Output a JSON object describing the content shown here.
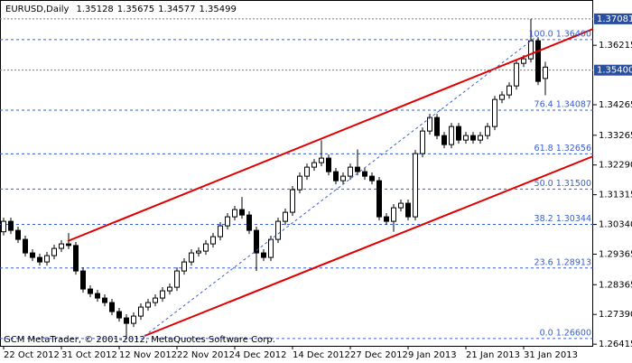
{
  "chart_data": {
    "type": "candlestick",
    "title": "EURUSD,Daily",
    "caption": "GCM MetaTrader, © 2001-2012, MetaQuotes Software Corp.",
    "up_color": "#ffffff",
    "down_color": "#000000",
    "fib_color": "#3a5fcd",
    "categories": [
      "22 Oct 2012",
      null,
      null,
      null,
      null,
      null,
      null,
      null,
      "31 Oct 2012",
      null,
      null,
      null,
      null,
      null,
      null,
      null,
      "12 Nov 2012",
      null,
      null,
      null,
      null,
      null,
      null,
      null,
      "22 Nov 2012",
      null,
      null,
      null,
      null,
      null,
      null,
      null,
      "4 Dec 2012",
      null,
      null,
      null,
      null,
      null,
      null,
      null,
      "14 Dec 2012",
      null,
      null,
      null,
      null,
      null,
      null,
      null,
      "27 Dec 2012",
      null,
      null,
      null,
      null,
      null,
      null,
      null,
      "9 Jan 2013",
      null,
      null,
      null,
      null,
      null,
      null,
      null,
      "21 Jan 2013",
      null,
      null,
      null,
      null,
      null,
      null,
      null,
      "31 Jan 2013",
      null,
      null,
      null
    ],
    "open": [
      1.301,
      1.30443,
      1.30147,
      1.29851,
      1.29407,
      1.29259,
      1.29111,
      1.29318,
      1.29555,
      1.29703,
      1.2965,
      1.28815,
      1.28223,
      1.28075,
      1.27927,
      1.27779,
      1.27483,
      1.27276,
      1.27098,
      1.27335,
      1.27631,
      1.27779,
      1.27927,
      1.28164,
      1.28282,
      1.28815,
      1.29111,
      1.29407,
      1.29466,
      1.29703,
      1.2994,
      1.30295,
      1.30591,
      1.30828,
      1.3065,
      1.30147,
      1.29407,
      1.29259,
      1.29851,
      1.30443,
      1.30739,
      1.31479,
      1.31923,
      1.32219,
      1.32367,
      1.32515,
      1.32071,
      1.31775,
      1.31923,
      1.32219,
      1.32071,
      1.31923,
      1.31775,
      1.30591,
      1.30443,
      1.30887,
      1.31035,
      1.30591,
      1.32663,
      1.33403,
      1.33847,
      1.33255,
      1.32959,
      1.33551,
      1.33107,
      1.33255,
      1.33107,
      1.33255,
      1.33551,
      1.34439,
      1.34587,
      1.34883,
      1.35623,
      1.35771,
      1.36363,
      1.35128
    ],
    "high": [
      1.30563,
      1.30563,
      1.30267,
      1.29971,
      1.29527,
      1.29379,
      1.29438,
      1.29675,
      1.29823,
      1.30058,
      1.2977,
      1.28935,
      1.28343,
      1.28195,
      1.28047,
      1.27899,
      1.27603,
      1.27396,
      1.27455,
      1.27751,
      1.27899,
      1.28047,
      1.28284,
      1.28402,
      1.28935,
      1.29231,
      1.29527,
      1.29586,
      1.29823,
      1.3006,
      1.30415,
      1.30711,
      1.30948,
      1.3124,
      1.3077,
      1.30267,
      1.29527,
      1.29971,
      1.30563,
      1.30859,
      1.31599,
      1.32043,
      1.32339,
      1.32487,
      1.331,
      1.32635,
      1.32191,
      1.32043,
      1.32339,
      1.328,
      1.32191,
      1.32043,
      1.31895,
      1.30711,
      1.31007,
      1.31155,
      1.31155,
      1.32783,
      1.33523,
      1.33967,
      1.33967,
      1.33375,
      1.33671,
      1.33671,
      1.33375,
      1.33375,
      1.33375,
      1.33671,
      1.34559,
      1.34707,
      1.35003,
      1.35743,
      1.35891,
      1.37081,
      1.36483,
      1.35675
    ],
    "low": [
      1.2998,
      1.30027,
      1.29731,
      1.29287,
      1.29139,
      1.28991,
      1.28991,
      1.29198,
      1.29435,
      1.2953,
      1.28695,
      1.28103,
      1.27955,
      1.27807,
      1.27659,
      1.27363,
      1.27156,
      1.266,
      1.26978,
      1.27215,
      1.27511,
      1.27659,
      1.27807,
      1.28044,
      1.28162,
      1.28695,
      1.28991,
      1.29287,
      1.29346,
      1.29583,
      1.2982,
      1.30175,
      1.30471,
      1.3053,
      1.30027,
      1.28815,
      1.29139,
      1.29139,
      1.29731,
      1.30323,
      1.30619,
      1.31359,
      1.31803,
      1.32099,
      1.32247,
      1.31951,
      1.31655,
      1.31655,
      1.31803,
      1.31951,
      1.31803,
      1.31655,
      1.30471,
      1.30323,
      1.301,
      1.30767,
      1.30471,
      1.30471,
      1.32543,
      1.33283,
      1.33135,
      1.32839,
      1.32839,
      1.32987,
      1.32987,
      1.32987,
      1.32987,
      1.33135,
      1.33431,
      1.34319,
      1.34467,
      1.34763,
      1.35503,
      1.35651,
      1.34911,
      1.34577
    ],
    "close": [
      1.30443,
      1.30147,
      1.29851,
      1.29407,
      1.29259,
      1.29111,
      1.29318,
      1.29555,
      1.29703,
      1.2965,
      1.28815,
      1.28223,
      1.28075,
      1.27927,
      1.27779,
      1.27483,
      1.27276,
      1.27098,
      1.27335,
      1.27631,
      1.27779,
      1.27927,
      1.28164,
      1.28282,
      1.28815,
      1.29111,
      1.29407,
      1.29466,
      1.29703,
      1.2994,
      1.30295,
      1.30591,
      1.30828,
      1.3065,
      1.30147,
      1.29407,
      1.29259,
      1.29851,
      1.30443,
      1.30739,
      1.31479,
      1.31923,
      1.32219,
      1.32367,
      1.32515,
      1.32071,
      1.31775,
      1.31923,
      1.32219,
      1.32071,
      1.31923,
      1.31775,
      1.30591,
      1.30443,
      1.30887,
      1.31035,
      1.30591,
      1.32663,
      1.33403,
      1.33847,
      1.33255,
      1.32959,
      1.33551,
      1.33107,
      1.33255,
      1.33107,
      1.33255,
      1.33551,
      1.34439,
      1.34587,
      1.34883,
      1.35623,
      1.35771,
      1.36363,
      1.35031,
      1.35499
    ],
    "ylim": [
      1.2636,
      1.377
    ],
    "yticks": [
      1.36215,
      1.34265,
      1.33265,
      {
        "value": 1.3229,
        "label": "1.32290"
      },
      1.31315,
      {
        "value": 1.3034,
        "label": "1.30340"
      },
      1.29365,
      1.28365,
      {
        "value": 1.2739,
        "label": "1.27390"
      },
      1.26415
    ],
    "marked_levels": [
      1.37081,
      {
        "value": 1.354,
        "label": "1.35400"
      }
    ],
    "fib_levels": [
      {
        "value": 1.364,
        "label": "100.0 1.36400"
      },
      {
        "value": 1.34087,
        "label": "76.4 1.34087"
      },
      {
        "value": 1.32656,
        "label": "61.8 1.32656"
      },
      {
        "value": 1.315,
        "label": "50.0 1.31500"
      },
      {
        "value": 1.30344,
        "label": "38.2 1.30344"
      },
      {
        "value": 1.28913,
        "label": "23.6 1.28913"
      },
      {
        "value": 1.266,
        "label": "0.0 1.26600"
      }
    ]
  }
}
